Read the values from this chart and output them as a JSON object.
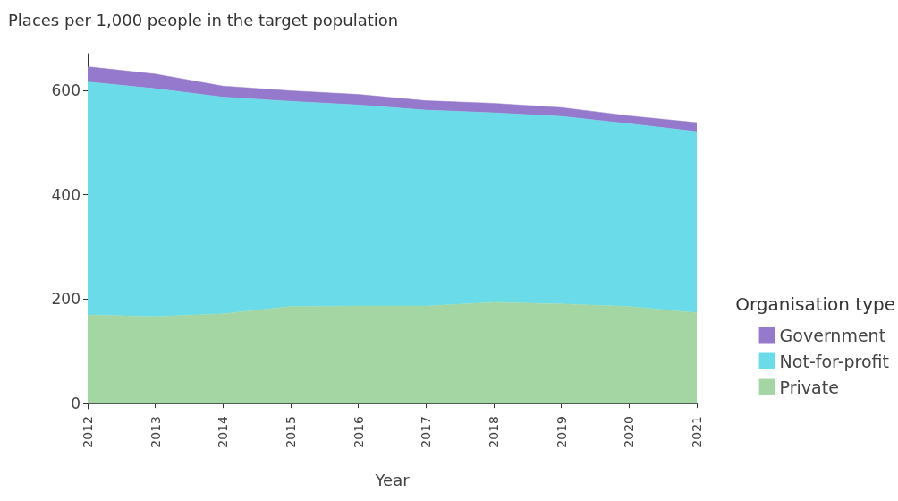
{
  "chart_data": {
    "type": "area",
    "title": "Places per 1,000 people in the target population",
    "xlabel": "Year",
    "legend_title": "Organisation type",
    "categories": [
      "2012",
      "2013",
      "2014",
      "2015",
      "2016",
      "2017",
      "2018",
      "2019",
      "2020",
      "2021"
    ],
    "stacked": true,
    "ylim": [
      -10,
      670
    ],
    "yticks": [
      0,
      200,
      400,
      600
    ],
    "grid": false,
    "legend": "right",
    "series": [
      {
        "name": "Private",
        "color": "#a3d6a2",
        "values": [
          170,
          167,
          172,
          186,
          187,
          187,
          194,
          191,
          186,
          174
        ]
      },
      {
        "name": "Not-for-profit",
        "color": "#6adce9",
        "values": [
          446,
          436,
          415,
          393,
          385,
          375,
          363,
          359,
          350,
          347
        ]
      },
      {
        "name": "Government",
        "color": "#9479cc",
        "values": [
          29,
          28,
          21,
          20,
          20,
          18,
          18,
          17,
          15,
          17
        ]
      }
    ]
  }
}
